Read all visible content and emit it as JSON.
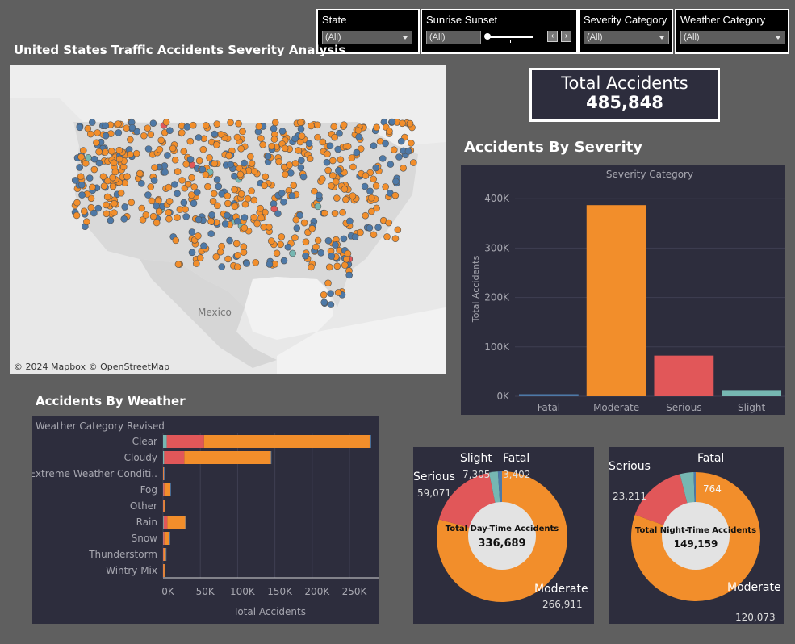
{
  "dashboard": {
    "title": "United States Traffic Accidents Severity Analysis"
  },
  "filters": {
    "state": {
      "label": "State",
      "value": "(All)"
    },
    "sunrise_sunset": {
      "label": "Sunrise Sunset",
      "value": "(All)"
    },
    "severity": {
      "label": "Severity Category",
      "value": "(All)"
    },
    "weather": {
      "label": "Weather Category",
      "value": "(All)"
    }
  },
  "map": {
    "country_label": "Mexico",
    "attribution": "© 2024 Mapbox  © OpenStreetMap"
  },
  "kpi": {
    "label": "Total Accidents",
    "value": "485,848"
  },
  "colors": {
    "panel": "#2d2d3d",
    "fatal": "#4e79a7",
    "moderate": "#f28e2b",
    "serious": "#e15759",
    "slight": "#76b7b2"
  },
  "severity_chart": {
    "title": "Accidents By Severity",
    "header": "Severity Category",
    "ylabel": "Total Accidents"
  },
  "weather_chart": {
    "title": "Accidents By Weather",
    "header": "Weather Category Revised",
    "xlabel": "Total Accidents"
  },
  "day_donut": {
    "center_label": "Total Day-Time Accidents",
    "center_value": "336,689",
    "labels": {
      "slight": {
        "name": "Slight",
        "value": "7,305"
      },
      "fatal": {
        "name": "Fatal",
        "value": "3,402"
      },
      "serious": {
        "name": "Serious",
        "value": "59,071"
      },
      "moderate": {
        "name": "Moderate",
        "value": "266,911"
      }
    }
  },
  "night_donut": {
    "center_label": "Total Night-Time Accidents",
    "center_value": "149,159",
    "labels": {
      "fatal": {
        "name": "Fatal",
        "value": "764"
      },
      "serious": {
        "name": "Serious",
        "value": "23,211"
      },
      "moderate": {
        "name": "Moderate",
        "value": "120,073"
      }
    }
  },
  "chart_data": [
    {
      "type": "bar",
      "title": "Accidents By Severity",
      "xlabel": "Severity Category",
      "ylabel": "Total Accidents",
      "categories": [
        "Fatal",
        "Moderate",
        "Serious",
        "Slight"
      ],
      "values": [
        4166,
        386984,
        82282,
        12416
      ],
      "ylim": [
        0,
        420000
      ],
      "yticks": [
        0,
        100000,
        200000,
        300000,
        400000
      ],
      "ytick_labels": [
        "0K",
        "100K",
        "200K",
        "300K",
        "400K"
      ],
      "grid": true
    },
    {
      "type": "bar",
      "orientation": "horizontal",
      "stacked": true,
      "title": "Accidents By Weather",
      "xlabel": "Total Accidents",
      "categories": [
        "Clear",
        "Cloudy",
        "Extreme Weather Conditi..",
        "Fog",
        "Other",
        "Rain",
        "Snow",
        "Thunderstorm",
        "Wintry Mix"
      ],
      "series": [
        {
          "name": "Slight",
          "values": [
            5000,
            1500,
            100,
            300,
            100,
            800,
            300,
            100,
            100
          ]
        },
        {
          "name": "Serious",
          "values": [
            50000,
            27000,
            300,
            1500,
            500,
            5000,
            1500,
            600,
            300
          ]
        },
        {
          "name": "Moderate",
          "values": [
            222000,
            116000,
            800,
            8000,
            1500,
            24000,
            7000,
            3000,
            1700
          ]
        },
        {
          "name": "Fatal",
          "values": [
            2000,
            800,
            50,
            200,
            50,
            300,
            200,
            100,
            50
          ]
        }
      ],
      "xlim": [
        0,
        290000
      ],
      "xticks": [
        0,
        50000,
        100000,
        150000,
        200000,
        250000
      ],
      "xtick_labels": [
        "0K",
        "50K",
        "100K",
        "150K",
        "200K",
        "250K"
      ],
      "grid": true
    },
    {
      "type": "pie",
      "title": "Total Day-Time Accidents",
      "categories": [
        "Moderate",
        "Serious",
        "Slight",
        "Fatal"
      ],
      "values": [
        266911,
        59071,
        7305,
        3402
      ]
    },
    {
      "type": "pie",
      "title": "Total Night-Time Accidents",
      "categories": [
        "Moderate",
        "Serious",
        "Slight",
        "Fatal"
      ],
      "values": [
        120073,
        23211,
        5111,
        764
      ]
    }
  ]
}
